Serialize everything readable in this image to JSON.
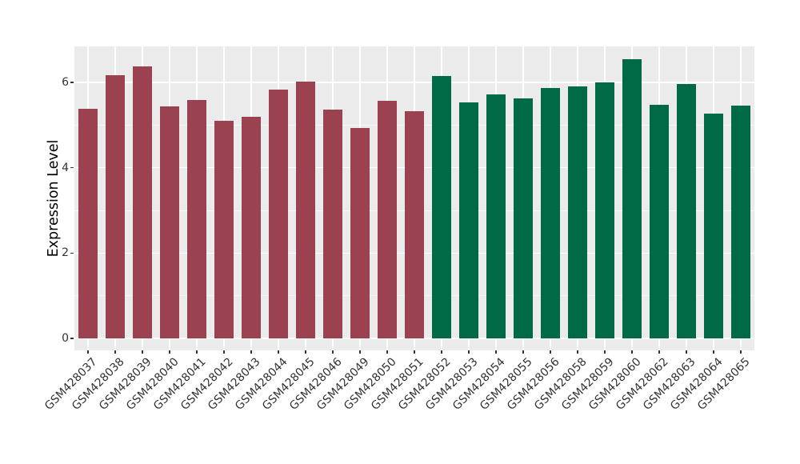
{
  "chart_data": {
    "type": "bar",
    "title": "",
    "xlabel": "",
    "ylabel": "Expression Level",
    "yticks": [
      0,
      2,
      4,
      6
    ],
    "minor_yticks": [
      1,
      3,
      5
    ],
    "ylim": [
      0,
      6.84
    ],
    "grid": true,
    "legend_position": "none",
    "categories": [
      "GSM428037",
      "GSM428038",
      "GSM428039",
      "GSM428040",
      "GSM428041",
      "GSM428042",
      "GSM428043",
      "GSM428044",
      "GSM428045",
      "GSM428046",
      "GSM428049",
      "GSM428050",
      "GSM428051",
      "GSM428052",
      "GSM428053",
      "GSM428054",
      "GSM428055",
      "GSM428056",
      "GSM428058",
      "GSM428059",
      "GSM428060",
      "GSM428062",
      "GSM428063",
      "GSM428064",
      "GSM428065"
    ],
    "values": [
      5.38,
      6.17,
      6.38,
      5.44,
      5.58,
      5.1,
      5.19,
      5.83,
      6.02,
      5.37,
      4.93,
      5.56,
      5.33,
      6.15,
      5.53,
      5.72,
      5.62,
      5.86,
      5.9,
      6.0,
      6.55,
      5.48,
      5.96,
      5.26,
      5.45
    ],
    "bar_groups": [
      "red",
      "red",
      "red",
      "red",
      "red",
      "red",
      "red",
      "red",
      "red",
      "red",
      "red",
      "red",
      "red",
      "green",
      "green",
      "green",
      "green",
      "green",
      "green",
      "green",
      "green",
      "green",
      "green",
      "green",
      "green"
    ],
    "group_colors": {
      "red": "#9A424F",
      "green": "#006A46"
    }
  },
  "style": {
    "panel_bg": "#EBEBEB",
    "grid_major": "#FFFFFF",
    "grid_minor": "#F7F7F7",
    "axis_text": "#333333",
    "axis_title": "#000000",
    "figure_bg": "#FFFFFF"
  }
}
